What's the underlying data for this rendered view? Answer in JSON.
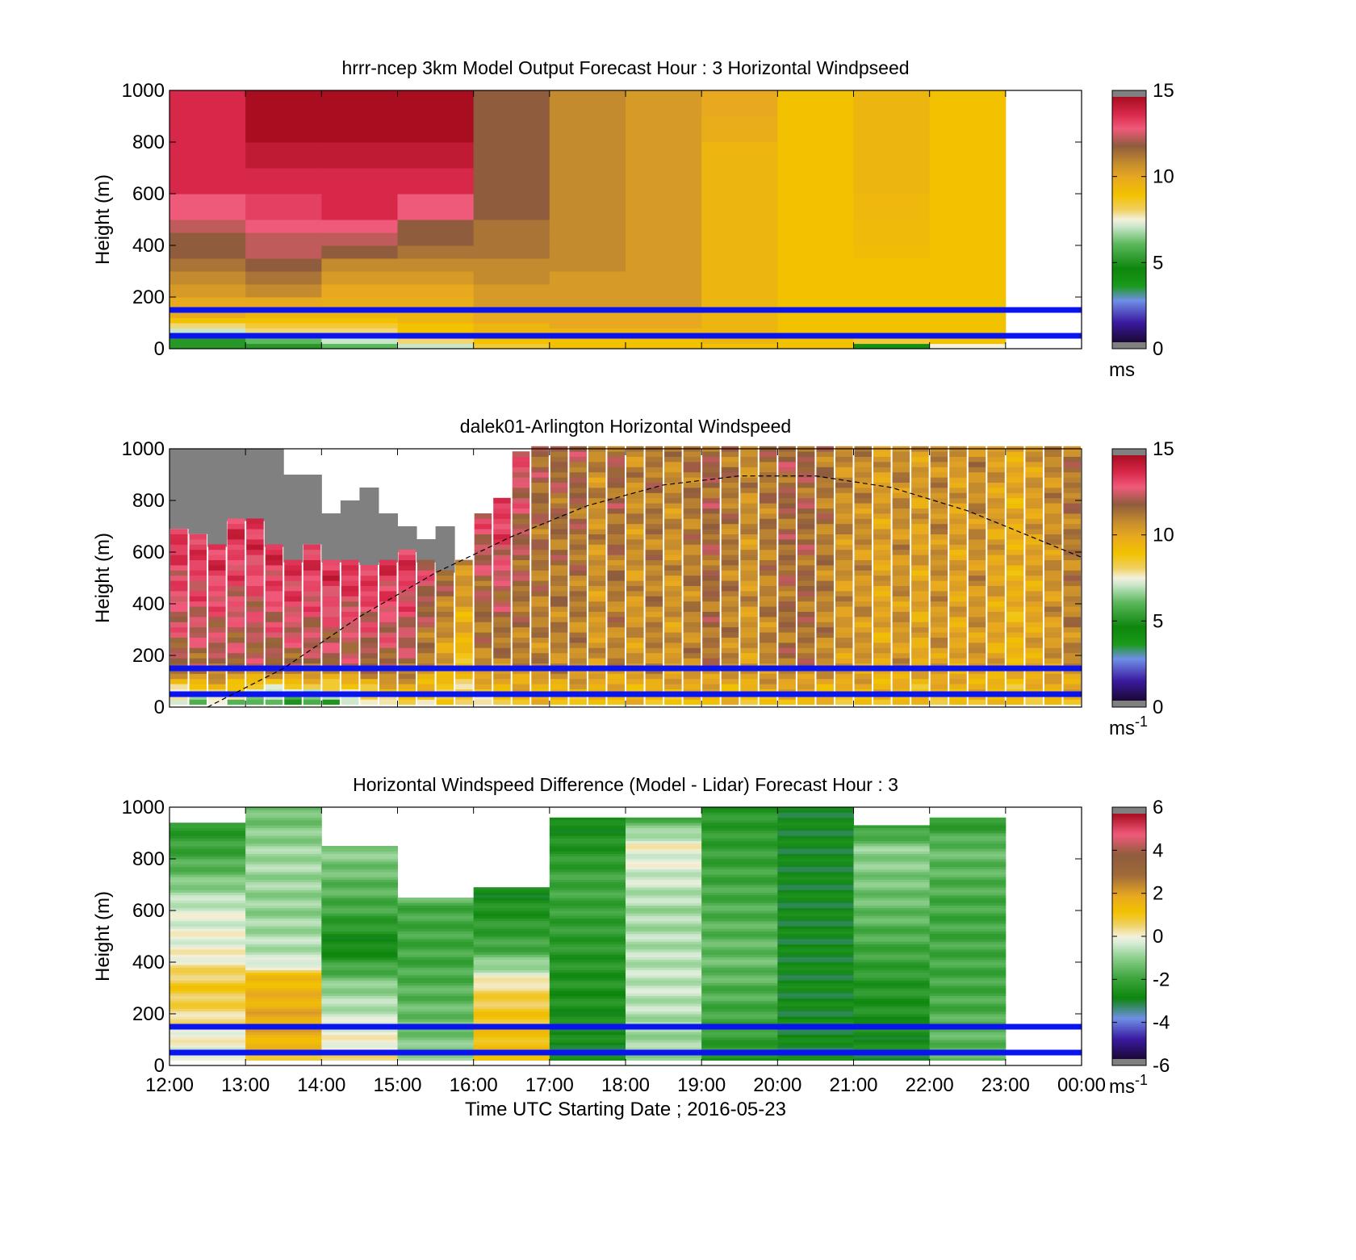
{
  "chart_data": [
    {
      "type": "heatmap",
      "title": "hrrr-ncep 3km Model Output   Forecast Hour : 3 Horizontal Windpseed",
      "ylabel": "Height (m)",
      "ylim": [
        0,
        1000
      ],
      "yticks": [
        "0",
        "200",
        "400",
        "600",
        "800",
        "1000"
      ],
      "xlim": [
        "12:00",
        "00:00"
      ],
      "colorbar": {
        "range": [
          0,
          15
        ],
        "ticks": [
          "0",
          "5",
          "10",
          "15"
        ],
        "unit": "ms"
      },
      "reference_lines_height_m": [
        50,
        150
      ],
      "time_columns": [
        "12:00",
        "13:00",
        "14:00",
        "15:00",
        "16:00",
        "17:00",
        "18:00",
        "19:00",
        "20:00",
        "21:00",
        "22:00"
      ],
      "levels_m": [
        0,
        20,
        40,
        60,
        80,
        100,
        120,
        150,
        200,
        250,
        300,
        350,
        400,
        450,
        500,
        600,
        700,
        800,
        900,
        1000
      ],
      "values": [
        [
          5,
          5,
          6,
          7,
          8,
          9,
          10,
          10,
          10.5,
          11,
          11.5,
          12,
          12,
          12.5,
          13,
          14,
          14,
          14,
          14
        ],
        [
          5,
          6,
          7,
          8,
          8.5,
          9,
          9.5,
          10,
          11,
          11.5,
          12,
          12.5,
          12.5,
          13,
          13.5,
          14,
          14.5,
          15,
          15
        ],
        [
          6,
          7,
          7.5,
          8,
          8.5,
          9,
          9.5,
          9.8,
          10,
          10.5,
          11,
          12,
          12.5,
          13,
          14,
          14,
          14.5,
          15,
          15
        ],
        [
          7,
          8,
          8.5,
          9,
          9,
          9.5,
          9.5,
          9.8,
          10,
          10.5,
          11,
          11.5,
          12,
          12,
          13,
          14,
          14.5,
          15,
          15
        ],
        [
          8.5,
          9,
          9,
          9.5,
          9.5,
          10,
          10,
          10.5,
          10.5,
          11,
          11,
          11.5,
          11.5,
          11.5,
          12,
          12,
          12,
          12,
          12
        ],
        [
          9,
          9,
          9.5,
          9.5,
          10,
          10,
          10,
          10.5,
          10.5,
          10.5,
          11,
          11,
          11,
          11,
          11,
          11,
          11,
          11,
          11
        ],
        [
          9,
          9,
          9.5,
          9.5,
          10,
          10,
          10,
          10.5,
          10.5,
          10.5,
          10.5,
          10.5,
          10.5,
          10.5,
          10.5,
          10.5,
          10.5,
          10.5,
          10.5
        ],
        [
          9,
          9.5,
          9.5,
          9.5,
          9.5,
          9.5,
          9.5,
          9.5,
          9.5,
          9.5,
          9.5,
          9.5,
          9.5,
          9.5,
          9.5,
          9.5,
          9.5,
          9.8,
          10
        ],
        [
          9,
          9,
          9,
          9,
          9,
          9,
          9,
          9,
          9,
          9,
          9,
          9,
          9,
          9,
          9,
          9,
          9,
          9,
          9
        ],
        [
          4,
          8.5,
          9,
          9,
          9,
          9,
          9,
          9,
          9,
          9,
          9,
          9.2,
          9.3,
          9.3,
          9.4,
          9.5,
          9.5,
          9.5,
          9.5
        ],
        [
          7.5,
          9,
          9,
          9,
          9,
          9,
          9,
          9,
          9,
          9,
          9,
          9,
          9,
          9,
          9,
          9,
          9,
          9,
          9
        ]
      ]
    },
    {
      "type": "heatmap",
      "title": "dalek01-Arlington  Horizontal Windspeed",
      "ylabel": "Height (m)",
      "ylim": [
        0,
        1000
      ],
      "yticks": [
        "0",
        "200",
        "400",
        "600",
        "800",
        "1000"
      ],
      "xlim": [
        "12:00",
        "00:00"
      ],
      "colorbar": {
        "range": [
          0,
          15
        ],
        "ticks": [
          "0",
          "5",
          "10",
          "15"
        ],
        "unit": "ms",
        "unit_exponent": "-1"
      },
      "reference_lines_height_m": [
        50,
        150
      ],
      "boundary_layer_curve": {
        "style": "dashed",
        "points": [
          {
            "time": "12:30",
            "height_m": 0
          },
          {
            "time": "13:30",
            "height_m": 150
          },
          {
            "time": "14:30",
            "height_m": 350
          },
          {
            "time": "15:30",
            "height_m": 520
          },
          {
            "time": "16:30",
            "height_m": 660
          },
          {
            "time": "17:30",
            "height_m": 780
          },
          {
            "time": "18:30",
            "height_m": 860
          },
          {
            "time": "19:30",
            "height_m": 895
          },
          {
            "time": "20:30",
            "height_m": 895
          },
          {
            "time": "21:30",
            "height_m": 850
          },
          {
            "time": "22:30",
            "height_m": 760
          },
          {
            "time": "23:30",
            "height_m": 640
          },
          {
            "time": "00:00",
            "height_m": 580
          }
        ]
      },
      "profiles_bottom_level_m": 10,
      "profiles_level_step_m": 20,
      "profiles": [
        {
          "time": "12:00",
          "top_m": 690,
          "low": 6,
          "mid": 12,
          "top": 14
        },
        {
          "time": "12:15",
          "top_m": 670,
          "low": 6,
          "mid": 12,
          "top": 14
        },
        {
          "time": "12:30",
          "top_m": 620,
          "low": 7,
          "mid": 12,
          "top": 14
        },
        {
          "time": "12:45",
          "top_m": 720,
          "low": 6,
          "mid": 12,
          "top": 14
        },
        {
          "time": "13:00",
          "top_m": 720,
          "low": 5,
          "mid": 12,
          "top": 14
        },
        {
          "time": "13:15",
          "top_m": 620,
          "low": 5,
          "mid": 12,
          "top": 14
        },
        {
          "time": "13:30",
          "top_m": 560,
          "low": 5,
          "mid": 12,
          "top": 14
        },
        {
          "time": "13:45",
          "top_m": 630,
          "low": 5,
          "mid": 12,
          "top": 14
        },
        {
          "time": "14:00",
          "top_m": 560,
          "low": 5,
          "mid": 12,
          "top": 14
        },
        {
          "time": "14:15",
          "top_m": 560,
          "low": 6,
          "mid": 12,
          "top": 14
        },
        {
          "time": "14:30",
          "top_m": 550,
          "low": 7,
          "mid": 12,
          "top": 14
        },
        {
          "time": "14:45",
          "top_m": 560,
          "low": 8,
          "mid": 12,
          "top": 14
        },
        {
          "time": "15:00",
          "top_m": 600,
          "low": 8,
          "mid": 12,
          "top": 14
        },
        {
          "time": "15:15",
          "top_m": 560,
          "low": 8,
          "mid": 11,
          "top": 13
        },
        {
          "time": "15:30",
          "top_m": 520,
          "low": 8,
          "mid": 10,
          "top": 12
        },
        {
          "time": "15:45",
          "top_m": 560,
          "low": 8,
          "mid": 9,
          "top": 11
        },
        {
          "time": "16:00",
          "top_m": 740,
          "low": 8,
          "mid": 11,
          "top": 13
        },
        {
          "time": "16:15",
          "top_m": 800,
          "low": 8,
          "mid": 11,
          "top": 14
        },
        {
          "time": "16:30",
          "top_m": 980,
          "low": 9,
          "mid": 11,
          "top": 13
        },
        {
          "time": "16:45",
          "top_m": 1000,
          "low": 9,
          "mid": 11,
          "top": 12
        },
        {
          "time": "17:00",
          "top_m": 1000,
          "low": 9,
          "mid": 11,
          "top": 12
        },
        {
          "time": "17:15",
          "top_m": 1000,
          "low": 9,
          "mid": 11,
          "top": 12
        },
        {
          "time": "17:30",
          "top_m": 1000,
          "low": 9,
          "mid": 10.5,
          "top": 11
        },
        {
          "time": "17:45",
          "top_m": 1000,
          "low": 9,
          "mid": 11,
          "top": 12
        },
        {
          "time": "18:00",
          "top_m": 1000,
          "low": 9,
          "mid": 10.5,
          "top": 11
        },
        {
          "time": "18:15",
          "top_m": 1000,
          "low": 9,
          "mid": 11,
          "top": 11.5
        },
        {
          "time": "18:30",
          "top_m": 1000,
          "low": 9,
          "mid": 10.5,
          "top": 11
        },
        {
          "time": "18:45",
          "top_m": 1000,
          "low": 9,
          "mid": 11,
          "top": 11.5
        },
        {
          "time": "19:00",
          "top_m": 1000,
          "low": 9,
          "mid": 11.5,
          "top": 12
        },
        {
          "time": "19:15",
          "top_m": 1000,
          "low": 9,
          "mid": 11,
          "top": 11.5
        },
        {
          "time": "19:30",
          "top_m": 1000,
          "low": 9,
          "mid": 10.5,
          "top": 11
        },
        {
          "time": "19:45",
          "top_m": 1000,
          "low": 9,
          "mid": 11,
          "top": 11.5
        },
        {
          "time": "20:00",
          "top_m": 1000,
          "low": 9,
          "mid": 11.5,
          "top": 12
        },
        {
          "time": "20:15",
          "top_m": 1000,
          "low": 9,
          "mid": 11.5,
          "top": 12
        },
        {
          "time": "20:30",
          "top_m": 1000,
          "low": 9,
          "mid": 11,
          "top": 11.5
        },
        {
          "time": "20:45",
          "top_m": 1000,
          "low": 9,
          "mid": 10.5,
          "top": 11
        },
        {
          "time": "21:00",
          "top_m": 1000,
          "low": 9,
          "mid": 10.5,
          "top": 11
        },
        {
          "time": "21:15",
          "top_m": 1000,
          "low": 9,
          "mid": 10,
          "top": 10.5
        },
        {
          "time": "21:30",
          "top_m": 1000,
          "low": 9,
          "mid": 10.5,
          "top": 11
        },
        {
          "time": "21:45",
          "top_m": 1000,
          "low": 9,
          "mid": 10,
          "top": 10.5
        },
        {
          "time": "22:00",
          "top_m": 1000,
          "low": 9,
          "mid": 10.5,
          "top": 11
        },
        {
          "time": "22:15",
          "top_m": 1000,
          "low": 9,
          "mid": 10,
          "top": 10.5
        },
        {
          "time": "22:30",
          "top_m": 1000,
          "low": 9,
          "mid": 10.5,
          "top": 11
        },
        {
          "time": "22:45",
          "top_m": 1000,
          "low": 9,
          "mid": 10,
          "top": 10.5
        },
        {
          "time": "23:00",
          "top_m": 1000,
          "low": 9,
          "mid": 9.5,
          "top": 10
        },
        {
          "time": "23:15",
          "top_m": 1000,
          "low": 9,
          "mid": 10,
          "top": 10.5
        },
        {
          "time": "23:30",
          "top_m": 1000,
          "low": 9,
          "mid": 10.5,
          "top": 11
        },
        {
          "time": "23:45",
          "top_m": 1000,
          "low": 9,
          "mid": 11,
          "top": 11.5
        }
      ],
      "no_data_region": [
        {
          "time": "12:00",
          "from_m": 690,
          "to_m": 1000
        },
        {
          "time": "12:15",
          "from_m": 670,
          "to_m": 1000
        },
        {
          "time": "12:30",
          "from_m": 620,
          "to_m": 1000
        },
        {
          "time": "12:45",
          "from_m": 720,
          "to_m": 1000
        },
        {
          "time": "13:00",
          "from_m": 720,
          "to_m": 1000
        },
        {
          "time": "13:15",
          "from_m": 620,
          "to_m": 1000
        },
        {
          "time": "13:30",
          "from_m": 560,
          "to_m": 900
        },
        {
          "time": "13:45",
          "from_m": 630,
          "to_m": 900
        },
        {
          "time": "14:00",
          "from_m": 560,
          "to_m": 750
        },
        {
          "time": "14:15",
          "from_m": 560,
          "to_m": 800
        },
        {
          "time": "14:30",
          "from_m": 550,
          "to_m": 850
        },
        {
          "time": "14:45",
          "from_m": 560,
          "to_m": 750
        },
        {
          "time": "15:00",
          "from_m": 600,
          "to_m": 700
        },
        {
          "time": "15:15",
          "from_m": 560,
          "to_m": 650
        },
        {
          "time": "15:30",
          "from_m": 520,
          "to_m": 700
        }
      ]
    },
    {
      "type": "heatmap",
      "title": "Horizontal Windspeed Difference (Model - Lidar) Forecast Hour : 3",
      "ylabel": "Height (m)",
      "xlabel": "Time UTC  Starting Date ; 2016-05-23",
      "ylim": [
        0,
        1000
      ],
      "yticks": [
        "0",
        "200",
        "400",
        "600",
        "800",
        "1000"
      ],
      "xticks": [
        "12:00",
        "13:00",
        "14:00",
        "15:00",
        "16:00",
        "17:00",
        "18:00",
        "19:00",
        "20:00",
        "21:00",
        "22:00",
        "23:00",
        "00:00"
      ],
      "colorbar": {
        "range": [
          -6,
          6
        ],
        "ticks": [
          "-6",
          "-4",
          "-2",
          "0",
          "2",
          "4",
          "6"
        ],
        "unit": "ms",
        "unit_exponent": "-1"
      },
      "reference_lines_height_m": [
        50,
        150
      ],
      "columns": [
        {
          "time": "12:00",
          "top_m": 940,
          "stops": [
            [
              0,
              -0.5
            ],
            [
              300,
              1
            ],
            [
              420,
              0
            ],
            [
              600,
              -0.3
            ],
            [
              800,
              -2
            ],
            [
              940,
              -2.5
            ]
          ]
        },
        {
          "time": "13:00",
          "top_m": 1000,
          "stops": [
            [
              0,
              1
            ],
            [
              150,
              2
            ],
            [
              330,
              1.5
            ],
            [
              400,
              -0.5
            ],
            [
              600,
              -1
            ],
            [
              800,
              -0.8
            ],
            [
              1000,
              -1.5
            ]
          ]
        },
        {
          "time": "14:00",
          "top_m": 850,
          "stops": [
            [
              0,
              0.5
            ],
            [
              150,
              -0.3
            ],
            [
              300,
              -1
            ],
            [
              450,
              -3
            ],
            [
              600,
              -2
            ],
            [
              850,
              -1
            ]
          ]
        },
        {
          "time": "15:00",
          "top_m": 650,
          "stops": [
            [
              0,
              -1
            ],
            [
              200,
              -1.5
            ],
            [
              400,
              -2
            ],
            [
              600,
              -2
            ],
            [
              650,
              -1.5
            ]
          ]
        },
        {
          "time": "16:00",
          "top_m": 690,
          "stops": [
            [
              0,
              1.5
            ],
            [
              200,
              1
            ],
            [
              300,
              0.5
            ],
            [
              450,
              -2
            ],
            [
              690,
              -3
            ]
          ]
        },
        {
          "time": "17:00",
          "top_m": 960,
          "stops": [
            [
              0,
              -3
            ],
            [
              400,
              -2.5
            ],
            [
              700,
              -2
            ],
            [
              960,
              -3
            ]
          ]
        },
        {
          "time": "18:00",
          "top_m": 960,
          "stops": [
            [
              0,
              -1
            ],
            [
              300,
              -0.5
            ],
            [
              600,
              -0.8
            ],
            [
              850,
              0
            ],
            [
              960,
              -2
            ]
          ]
        },
        {
          "time": "19:00",
          "top_m": 1000,
          "stops": [
            [
              0,
              -2.5
            ],
            [
              400,
              -1.5
            ],
            [
              700,
              -2
            ],
            [
              1000,
              -2.5
            ]
          ]
        },
        {
          "time": "20:00",
          "top_m": 1000,
          "stops": [
            [
              0,
              -3
            ],
            [
              500,
              -3
            ],
            [
              1000,
              -3
            ]
          ]
        },
        {
          "time": "21:00",
          "top_m": 930,
          "stops": [
            [
              0,
              -3
            ],
            [
              300,
              -2.5
            ],
            [
              600,
              -1.5
            ],
            [
              830,
              -1
            ],
            [
              930,
              -2.5
            ]
          ]
        },
        {
          "time": "22:00",
          "top_m": 960,
          "stops": [
            [
              0,
              -1.5
            ],
            [
              300,
              -2
            ],
            [
              600,
              -2
            ],
            [
              830,
              -1.5
            ],
            [
              960,
              -2.5
            ]
          ]
        }
      ]
    }
  ]
}
